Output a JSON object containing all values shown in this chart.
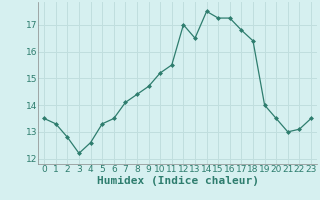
{
  "x": [
    0,
    1,
    2,
    3,
    4,
    5,
    6,
    7,
    8,
    9,
    10,
    11,
    12,
    13,
    14,
    15,
    16,
    17,
    18,
    19,
    20,
    21,
    22,
    23
  ],
  "y": [
    13.5,
    13.3,
    12.8,
    12.2,
    12.6,
    13.3,
    13.5,
    14.1,
    14.4,
    14.7,
    15.2,
    15.5,
    17.0,
    16.5,
    17.5,
    17.25,
    17.25,
    16.8,
    16.4,
    14.0,
    13.5,
    13.0,
    13.1,
    13.5
  ],
  "xlabel": "Humidex (Indice chaleur)",
  "ylim": [
    11.8,
    17.85
  ],
  "xlim": [
    -0.5,
    23.5
  ],
  "yticks": [
    12,
    13,
    14,
    15,
    16,
    17
  ],
  "xticks": [
    0,
    1,
    2,
    3,
    4,
    5,
    6,
    7,
    8,
    9,
    10,
    11,
    12,
    13,
    14,
    15,
    16,
    17,
    18,
    19,
    20,
    21,
    22,
    23
  ],
  "line_color": "#2E7D6E",
  "marker": "D",
  "marker_size": 2.0,
  "bg_color": "#D6F0F0",
  "grid_color": "#C0DEDE",
  "xlabel_fontsize": 8,
  "tick_fontsize": 6.5
}
